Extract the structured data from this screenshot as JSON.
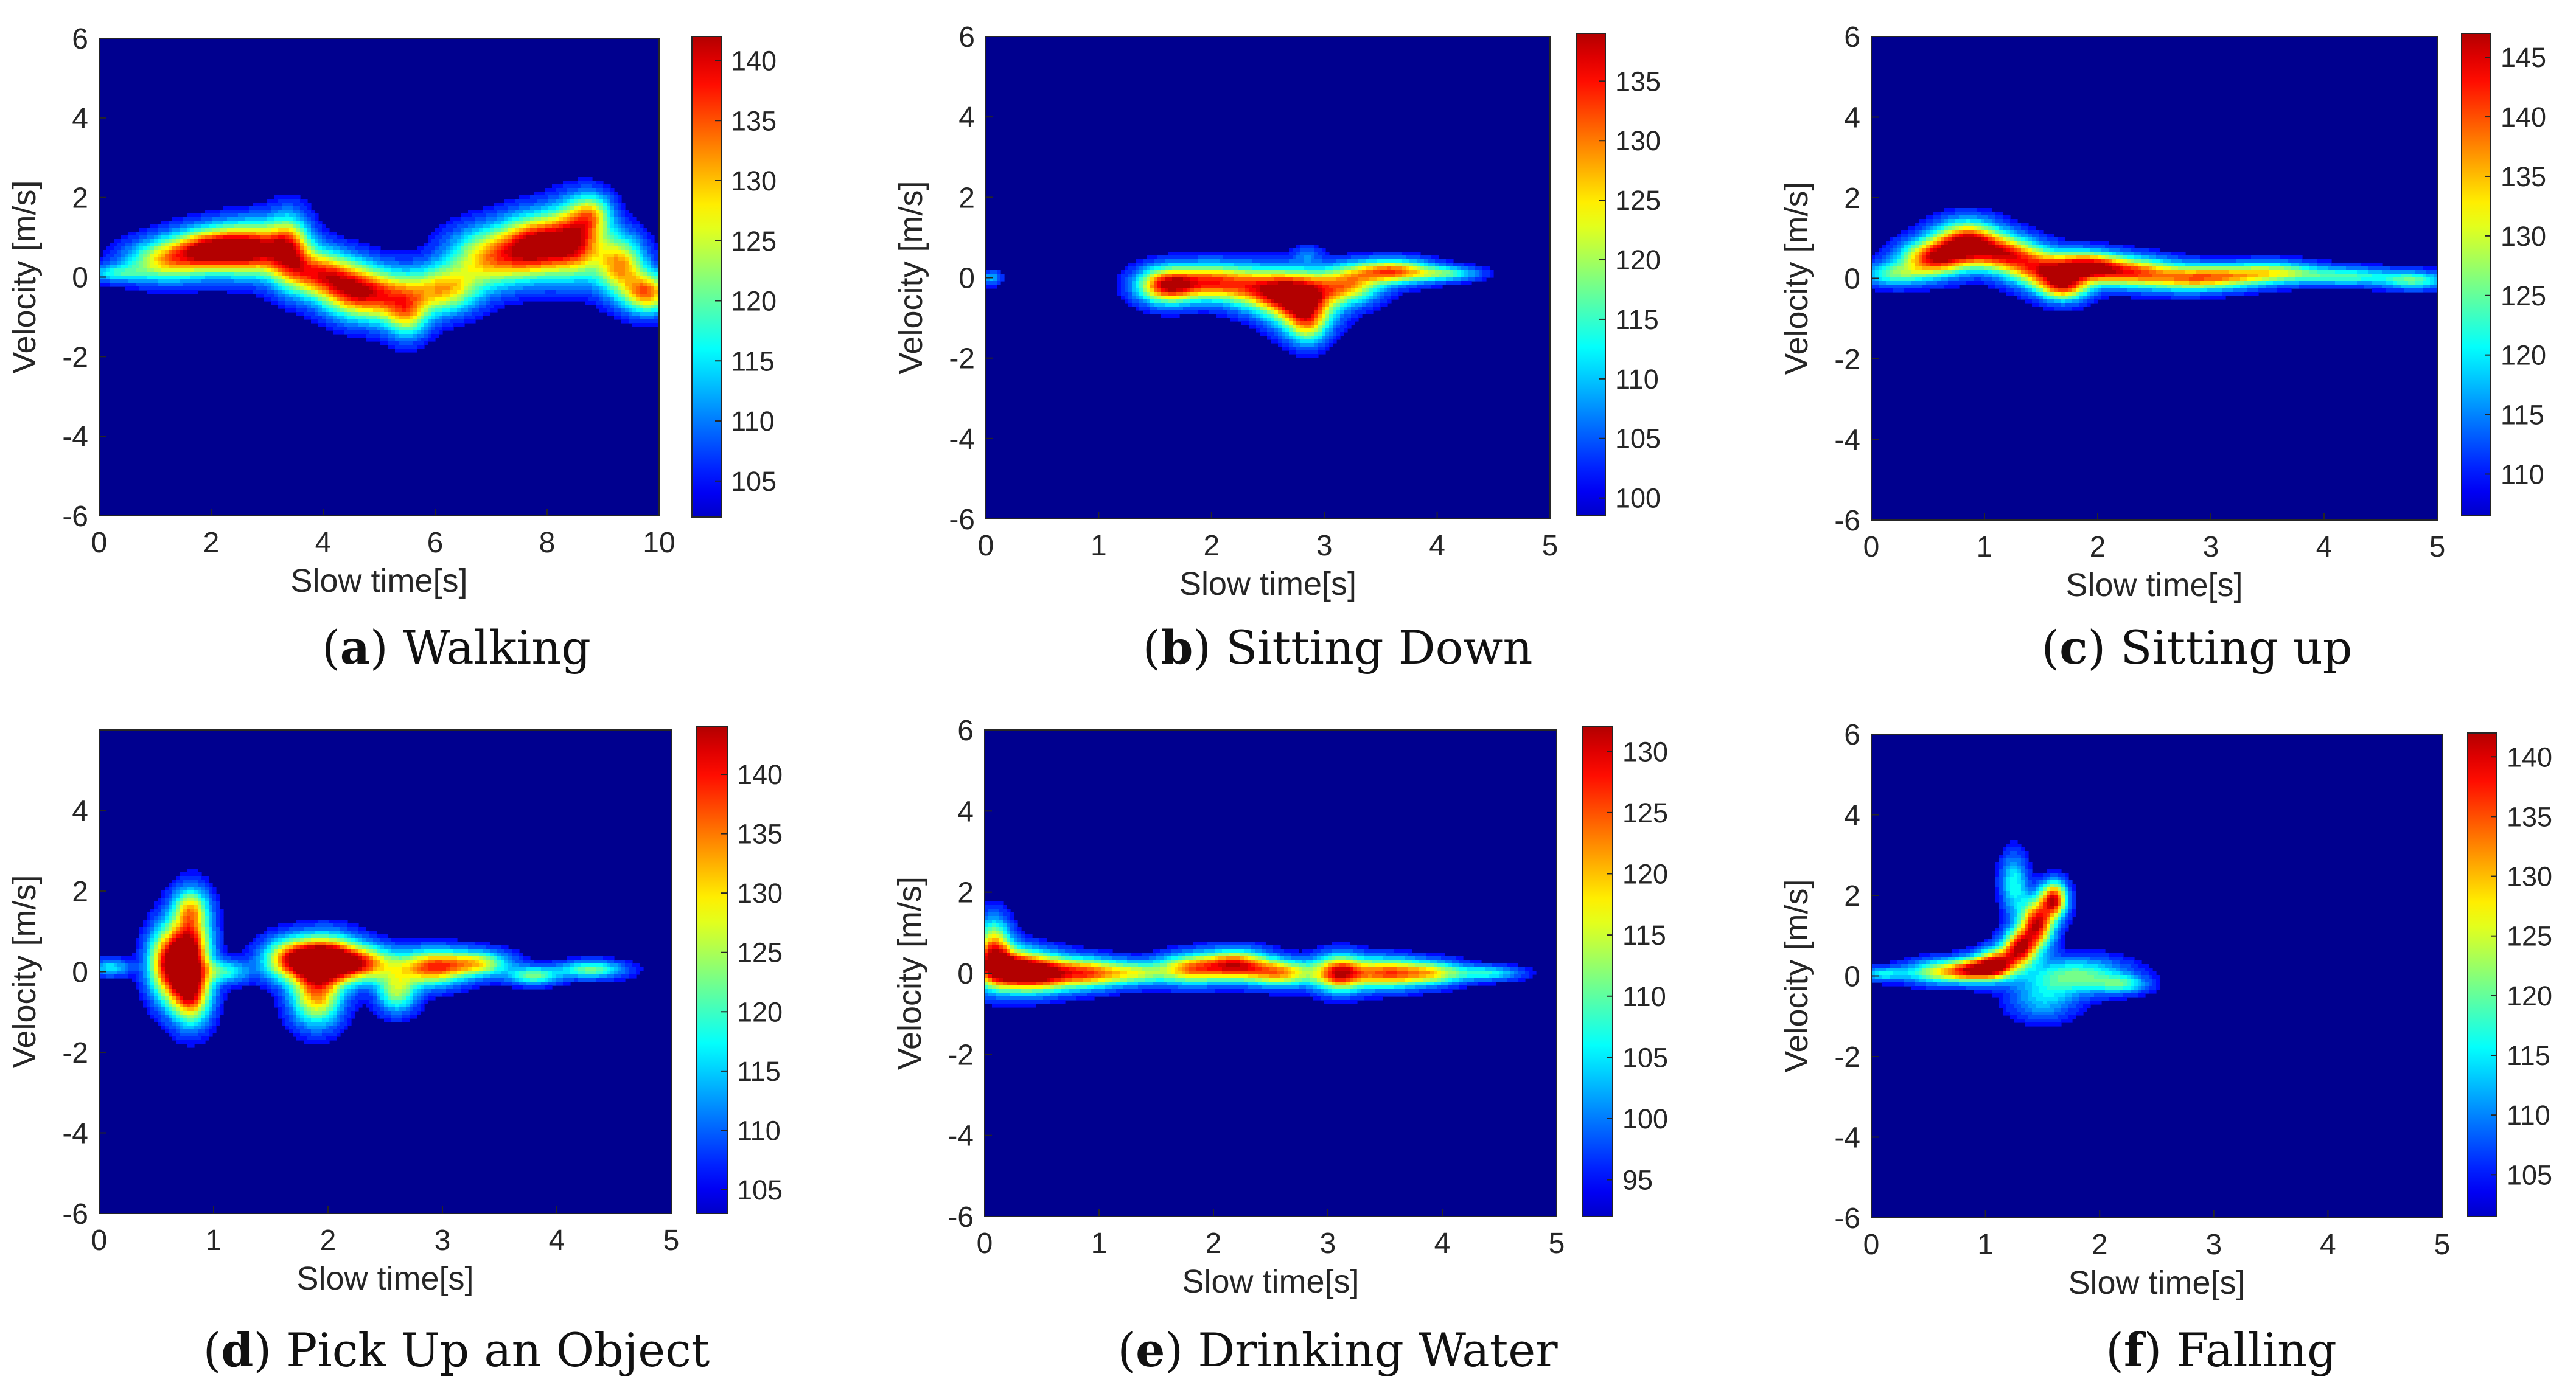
{
  "figure": {
    "colormap": "jet",
    "background_color": "#00008f",
    "charts": [
      {
        "id": "a",
        "type": "heatmap",
        "caption_letter": "a",
        "caption_text": "Walking",
        "xlabel": "Slow time[s]",
        "ylabel": "Velocity [m/s]",
        "xlim": [
          0,
          10
        ],
        "ylim": [
          -6,
          6
        ],
        "xticks": [
          "0",
          "2",
          "4",
          "6",
          "8",
          "10"
        ],
        "yticks": [
          "-6",
          "-4",
          "-2",
          "0",
          "2",
          "4",
          "6"
        ],
        "colorbar": {
          "min": 102,
          "max": 142,
          "ticks": [
            "105",
            "110",
            "115",
            "120",
            "125",
            "130",
            "135",
            "140"
          ]
        },
        "blobs": [
          {
            "t": 0.3,
            "v": 0.1,
            "st": 0.35,
            "sv": 0.15,
            "a": 0.3
          },
          {
            "t": 1.2,
            "v": 0.4,
            "st": 0.5,
            "sv": 0.35,
            "a": 0.6
          },
          {
            "t": 2.0,
            "v": 0.7,
            "st": 0.5,
            "sv": 0.35,
            "a": 0.85
          },
          {
            "t": 2.8,
            "v": 0.7,
            "st": 0.5,
            "sv": 0.45,
            "a": 0.85
          },
          {
            "t": 3.4,
            "v": 0.7,
            "st": 0.25,
            "sv": 0.6,
            "a": 0.55
          },
          {
            "t": 3.9,
            "v": 0.1,
            "st": 0.4,
            "sv": 0.4,
            "a": 0.7
          },
          {
            "t": 4.5,
            "v": -0.3,
            "st": 0.4,
            "sv": 0.45,
            "a": 0.7
          },
          {
            "t": 5.2,
            "v": -0.5,
            "st": 0.5,
            "sv": 0.45,
            "a": 0.65
          },
          {
            "t": 5.5,
            "v": -1.0,
            "st": 0.25,
            "sv": 0.4,
            "a": 0.4
          },
          {
            "t": 6.2,
            "v": -0.3,
            "st": 0.4,
            "sv": 0.4,
            "a": 0.6
          },
          {
            "t": 7.0,
            "v": 0.5,
            "st": 0.5,
            "sv": 0.5,
            "a": 0.7
          },
          {
            "t": 7.8,
            "v": 0.8,
            "st": 0.4,
            "sv": 0.5,
            "a": 0.9
          },
          {
            "t": 8.5,
            "v": 0.9,
            "st": 0.35,
            "sv": 0.6,
            "a": 0.85
          },
          {
            "t": 8.8,
            "v": 1.6,
            "st": 0.25,
            "sv": 0.35,
            "a": 0.45
          },
          {
            "t": 9.3,
            "v": 0.3,
            "st": 0.3,
            "sv": 0.5,
            "a": 0.7
          },
          {
            "t": 9.8,
            "v": -0.4,
            "st": 0.3,
            "sv": 0.35,
            "a": 0.75
          }
        ]
      },
      {
        "id": "b",
        "type": "heatmap",
        "caption_letter": "b",
        "caption_text": "Sitting Down",
        "xlabel": "Slow time[s]",
        "ylabel": "Velocity [m/s]",
        "xlim": [
          0,
          5
        ],
        "ylim": [
          -6,
          6
        ],
        "xticks": [
          "0",
          "1",
          "2",
          "3",
          "4",
          "5"
        ],
        "yticks": [
          "-6",
          "-4",
          "-2",
          "0",
          "2",
          "4",
          "6"
        ],
        "colorbar": {
          "min": 98.5,
          "max": 139,
          "ticks": [
            "100",
            "105",
            "110",
            "115",
            "120",
            "125",
            "130",
            "135"
          ]
        },
        "blobs": [
          {
            "t": 0.05,
            "v": 0.0,
            "st": 0.06,
            "sv": 0.12,
            "a": 0.25
          },
          {
            "t": 1.6,
            "v": -0.2,
            "st": 0.18,
            "sv": 0.3,
            "a": 0.85
          },
          {
            "t": 2.0,
            "v": -0.1,
            "st": 0.25,
            "sv": 0.3,
            "a": 0.75
          },
          {
            "t": 2.5,
            "v": -0.3,
            "st": 0.25,
            "sv": 0.35,
            "a": 0.75
          },
          {
            "t": 2.8,
            "v": -0.6,
            "st": 0.2,
            "sv": 0.45,
            "a": 0.9
          },
          {
            "t": 2.85,
            "v": -1.2,
            "st": 0.12,
            "sv": 0.35,
            "a": 0.4
          },
          {
            "t": 2.85,
            "v": 0.6,
            "st": 0.08,
            "sv": 0.15,
            "a": 0.15
          },
          {
            "t": 3.2,
            "v": -0.2,
            "st": 0.2,
            "sv": 0.3,
            "a": 0.65
          },
          {
            "t": 3.6,
            "v": 0.15,
            "st": 0.25,
            "sv": 0.2,
            "a": 0.8
          },
          {
            "t": 4.1,
            "v": 0.1,
            "st": 0.2,
            "sv": 0.12,
            "a": 0.35
          }
        ]
      },
      {
        "id": "c",
        "type": "heatmap",
        "caption_letter": "c",
        "caption_text": "Sitting up",
        "xlabel": "Slow time[s]",
        "ylabel": "Velocity [m/s]",
        "xlim": [
          0,
          5
        ],
        "ylim": [
          -6,
          6
        ],
        "xticks": [
          "0",
          "1",
          "2",
          "3",
          "4",
          "5"
        ],
        "yticks": [
          "-6",
          "-4",
          "-2",
          "0",
          "2",
          "4",
          "6"
        ],
        "colorbar": {
          "min": 106.5,
          "max": 147,
          "ticks": [
            "110",
            "115",
            "120",
            "125",
            "130",
            "135",
            "140",
            "145"
          ]
        },
        "blobs": [
          {
            "t": 0.2,
            "v": 0.1,
            "st": 0.2,
            "sv": 0.2,
            "a": 0.4
          },
          {
            "t": 0.55,
            "v": 0.5,
            "st": 0.2,
            "sv": 0.3,
            "a": 0.85
          },
          {
            "t": 0.85,
            "v": 0.9,
            "st": 0.2,
            "sv": 0.35,
            "a": 0.95
          },
          {
            "t": 1.2,
            "v": 0.6,
            "st": 0.2,
            "sv": 0.3,
            "a": 0.75
          },
          {
            "t": 1.5,
            "v": 0.2,
            "st": 0.2,
            "sv": 0.3,
            "a": 0.7
          },
          {
            "t": 1.7,
            "v": -0.2,
            "st": 0.15,
            "sv": 0.25,
            "a": 0.75
          },
          {
            "t": 1.9,
            "v": 0.3,
            "st": 0.2,
            "sv": 0.25,
            "a": 0.85
          },
          {
            "t": 2.3,
            "v": 0.15,
            "st": 0.25,
            "sv": 0.25,
            "a": 0.75
          },
          {
            "t": 2.8,
            "v": 0.0,
            "st": 0.25,
            "sv": 0.22,
            "a": 0.6
          },
          {
            "t": 3.2,
            "v": 0.05,
            "st": 0.25,
            "sv": 0.2,
            "a": 0.5
          },
          {
            "t": 3.6,
            "v": 0.15,
            "st": 0.25,
            "sv": 0.18,
            "a": 0.45
          },
          {
            "t": 4.2,
            "v": 0.05,
            "st": 0.3,
            "sv": 0.15,
            "a": 0.4
          },
          {
            "t": 4.8,
            "v": -0.05,
            "st": 0.2,
            "sv": 0.15,
            "a": 0.4
          }
        ]
      },
      {
        "id": "d",
        "type": "heatmap",
        "caption_letter": "d",
        "caption_text": "Pick Up an Object",
        "xlabel": "Slow time[s]",
        "ylabel": "Velocity [m/s]",
        "xlim": [
          0,
          5
        ],
        "ylim": [
          -6,
          6
        ],
        "xticks": [
          "0",
          "1",
          "2",
          "3",
          "4",
          "5"
        ],
        "yticks": [
          "-6",
          "-4",
          "-2",
          "0",
          "2",
          "4"
        ],
        "colorbar": {
          "min": 103,
          "max": 144,
          "ticks": [
            "105",
            "110",
            "115",
            "120",
            "125",
            "130",
            "135",
            "140"
          ]
        },
        "blobs": [
          {
            "t": 0.1,
            "v": 0.1,
            "st": 0.12,
            "sv": 0.15,
            "a": 0.3
          },
          {
            "t": 0.6,
            "v": 0.2,
            "st": 0.12,
            "sv": 0.6,
            "a": 0.85
          },
          {
            "t": 0.8,
            "v": 0.5,
            "st": 0.12,
            "sv": 0.8,
            "a": 0.95
          },
          {
            "t": 0.8,
            "v": -0.6,
            "st": 0.12,
            "sv": 0.5,
            "a": 0.6
          },
          {
            "t": 0.8,
            "v": 1.6,
            "st": 0.1,
            "sv": 0.3,
            "a": 0.35
          },
          {
            "t": 1.1,
            "v": 0.0,
            "st": 0.15,
            "sv": 0.2,
            "a": 0.35
          },
          {
            "t": 1.7,
            "v": 0.3,
            "st": 0.18,
            "sv": 0.35,
            "a": 0.85
          },
          {
            "t": 2.0,
            "v": 0.3,
            "st": 0.18,
            "sv": 0.4,
            "a": 0.95
          },
          {
            "t": 1.9,
            "v": -0.6,
            "st": 0.15,
            "sv": 0.5,
            "a": 0.7
          },
          {
            "t": 2.3,
            "v": 0.2,
            "st": 0.2,
            "sv": 0.3,
            "a": 0.75
          },
          {
            "t": 2.6,
            "v": -0.5,
            "st": 0.12,
            "sv": 0.35,
            "a": 0.5
          },
          {
            "t": 2.9,
            "v": 0.1,
            "st": 0.2,
            "sv": 0.3,
            "a": 0.8
          },
          {
            "t": 3.3,
            "v": 0.2,
            "st": 0.2,
            "sv": 0.22,
            "a": 0.6
          },
          {
            "t": 3.8,
            "v": -0.1,
            "st": 0.15,
            "sv": 0.15,
            "a": 0.45
          },
          {
            "t": 4.3,
            "v": 0.05,
            "st": 0.2,
            "sv": 0.15,
            "a": 0.45
          }
        ]
      },
      {
        "id": "e",
        "type": "heatmap",
        "caption_letter": "e",
        "caption_text": "Drinking Water",
        "xlabel": "Slow time[s]",
        "ylabel": "Velocity [m/s]",
        "xlim": [
          0,
          5
        ],
        "ylim": [
          -6,
          6
        ],
        "xticks": [
          "0",
          "1",
          "2",
          "3",
          "4",
          "5"
        ],
        "yticks": [
          "-6",
          "-4",
          "-2",
          "0",
          "2",
          "4",
          "6"
        ],
        "colorbar": {
          "min": 92,
          "max": 132,
          "ticks": [
            "95",
            "100",
            "105",
            "110",
            "115",
            "120",
            "125",
            "130"
          ]
        },
        "blobs": [
          {
            "t": 0.08,
            "v": 0.6,
            "st": 0.1,
            "sv": 0.5,
            "a": 0.7
          },
          {
            "t": 0.2,
            "v": 0.1,
            "st": 0.2,
            "sv": 0.35,
            "a": 0.9
          },
          {
            "t": 0.5,
            "v": 0.0,
            "st": 0.2,
            "sv": 0.3,
            "a": 0.85
          },
          {
            "t": 0.9,
            "v": 0.0,
            "st": 0.2,
            "sv": 0.25,
            "a": 0.7
          },
          {
            "t": 1.3,
            "v": 0.0,
            "st": 0.2,
            "sv": 0.2,
            "a": 0.5
          },
          {
            "t": 1.8,
            "v": 0.1,
            "st": 0.2,
            "sv": 0.25,
            "a": 0.7
          },
          {
            "t": 2.2,
            "v": 0.2,
            "st": 0.2,
            "sv": 0.25,
            "a": 0.85
          },
          {
            "t": 2.6,
            "v": 0.0,
            "st": 0.2,
            "sv": 0.22,
            "a": 0.7
          },
          {
            "t": 3.1,
            "v": 0.0,
            "st": 0.15,
            "sv": 0.3,
            "a": 0.9
          },
          {
            "t": 3.5,
            "v": 0.0,
            "st": 0.2,
            "sv": 0.25,
            "a": 0.75
          },
          {
            "t": 3.9,
            "v": 0.0,
            "st": 0.2,
            "sv": 0.2,
            "a": 0.6
          },
          {
            "t": 4.4,
            "v": 0.0,
            "st": 0.2,
            "sv": 0.12,
            "a": 0.35
          }
        ]
      },
      {
        "id": "f",
        "type": "heatmap",
        "caption_letter": "f",
        "caption_text": "Falling",
        "xlabel": "Slow time[s]",
        "ylabel": "Velocity [m/s]",
        "xlim": [
          0,
          5
        ],
        "ylim": [
          -6,
          6
        ],
        "xticks": [
          "0",
          "1",
          "2",
          "3",
          "4",
          "5"
        ],
        "yticks": [
          "-6",
          "-4",
          "-2",
          "0",
          "2",
          "4",
          "6"
        ],
        "colorbar": {
          "min": 101.5,
          "max": 142,
          "ticks": [
            "105",
            "110",
            "115",
            "120",
            "125",
            "130",
            "135",
            "140"
          ]
        },
        "blobs": [
          {
            "t": 0.1,
            "v": 0.05,
            "st": 0.15,
            "sv": 0.12,
            "a": 0.3
          },
          {
            "t": 0.6,
            "v": 0.1,
            "st": 0.2,
            "sv": 0.2,
            "a": 0.55
          },
          {
            "t": 0.9,
            "v": 0.15,
            "st": 0.15,
            "sv": 0.2,
            "a": 0.75
          },
          {
            "t": 1.1,
            "v": 0.3,
            "st": 0.12,
            "sv": 0.25,
            "a": 0.85
          },
          {
            "t": 1.3,
            "v": 0.7,
            "st": 0.1,
            "sv": 0.3,
            "a": 0.9
          },
          {
            "t": 1.45,
            "v": 1.3,
            "st": 0.1,
            "sv": 0.4,
            "a": 0.95
          },
          {
            "t": 1.6,
            "v": 1.9,
            "st": 0.08,
            "sv": 0.3,
            "a": 0.9
          },
          {
            "t": 1.25,
            "v": 2.3,
            "st": 0.08,
            "sv": 0.5,
            "a": 0.35
          },
          {
            "t": 1.8,
            "v": 0.0,
            "st": 0.3,
            "sv": 0.3,
            "a": 0.45
          },
          {
            "t": 1.5,
            "v": -0.6,
            "st": 0.2,
            "sv": 0.35,
            "a": 0.25
          },
          {
            "t": 2.2,
            "v": -0.2,
            "st": 0.15,
            "sv": 0.15,
            "a": 0.3
          }
        ]
      }
    ]
  }
}
